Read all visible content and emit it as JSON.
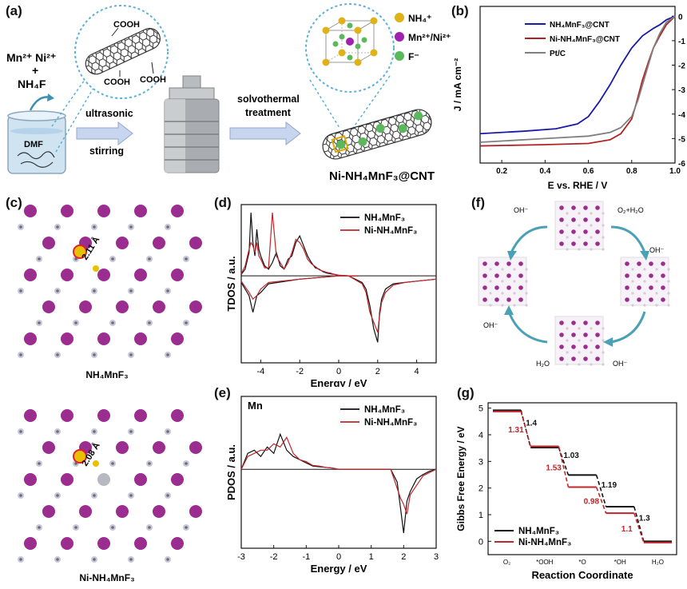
{
  "panels": {
    "a": {
      "label": "(a)",
      "precursor_line1": "Mn²⁺ Ni²⁺",
      "precursor_plus": "+",
      "precursor_line2": "NH₄F",
      "solvent": "DMF",
      "cooh": [
        "COOH",
        "COOH",
        "COOH"
      ],
      "step1_top": "ultrasonic",
      "step1_bottom": "stirring",
      "step2_top": "solvothermal",
      "step2_bottom": "treatment",
      "legend": [
        "NH₄⁺",
        "Mn²⁺/Ni²⁺",
        "F⁻"
      ],
      "product": "Ni-NH₄MnF₃@CNT",
      "colors": {
        "nh4": "#e0b21a",
        "mn_ni": "#a020b0",
        "f": "#5cb85c"
      }
    },
    "b": {
      "label": "(b)"
    },
    "c": {
      "label": "(c)",
      "bond_top": "2.11 Å",
      "bond_bottom": "2.08 Å",
      "name_top": "NH₄MnF₃",
      "name_bottom": "Ni-NH₄MnF₃"
    },
    "d": {
      "label": "(d)"
    },
    "e": {
      "label": "(e)",
      "element": "Mn"
    },
    "f": {
      "label": "(f)",
      "species": [
        "OH⁻",
        "O₂+H₂O",
        "OH⁻",
        "OH⁻",
        "H₂O",
        "OH⁻"
      ]
    },
    "g": {
      "label": "(g)"
    }
  },
  "chart_data": [
    {
      "id": "b",
      "type": "line",
      "xlabel": "E vs. RHE / V",
      "ylabel": "J / mA cm⁻²",
      "xlim": [
        0.1,
        1.0
      ],
      "ylim": [
        -6,
        0.4
      ],
      "xticks": [
        0.2,
        0.4,
        0.6,
        0.8,
        1.0
      ],
      "yticks": [
        0,
        -1,
        -2,
        -3,
        -4,
        -5,
        -6
      ],
      "legend_position": "top-right",
      "series": [
        {
          "name": "NH₄MnF₃@CNT",
          "color": "#1a1aa6",
          "x": [
            0.1,
            0.3,
            0.45,
            0.55,
            0.6,
            0.65,
            0.7,
            0.75,
            0.8,
            0.85,
            0.9,
            0.93,
            0.96,
            1.0
          ],
          "y": [
            -4.8,
            -4.7,
            -4.6,
            -4.4,
            -4.1,
            -3.5,
            -2.8,
            -2.0,
            -1.3,
            -0.8,
            -0.5,
            -0.35,
            -0.15,
            0.0
          ]
        },
        {
          "name": "Ni-NH₄MnF₃@CNT",
          "color": "#b22222",
          "x": [
            0.1,
            0.4,
            0.6,
            0.7,
            0.75,
            0.8,
            0.82,
            0.85,
            0.88,
            0.9,
            0.93,
            0.96,
            1.0
          ],
          "y": [
            -5.3,
            -5.25,
            -5.2,
            -5.05,
            -4.8,
            -4.2,
            -3.6,
            -2.6,
            -1.8,
            -1.3,
            -0.8,
            -0.35,
            0.0
          ]
        },
        {
          "name": "Pt/C",
          "color": "#808080",
          "x": [
            0.1,
            0.4,
            0.6,
            0.7,
            0.75,
            0.8,
            0.83,
            0.85,
            0.88,
            0.9,
            0.93,
            0.96,
            1.0
          ],
          "y": [
            -5.15,
            -5.0,
            -4.9,
            -4.75,
            -4.55,
            -4.1,
            -3.4,
            -2.8,
            -1.9,
            -1.3,
            -0.7,
            -0.25,
            0.0
          ]
        }
      ]
    },
    {
      "id": "d",
      "type": "line",
      "xlabel": "Energy / eV",
      "ylabel": "TDOS / a.u.",
      "xlim": [
        -5,
        5
      ],
      "ylim": [
        -1,
        1
      ],
      "xticks": [
        -4,
        -2,
        0,
        2,
        4
      ],
      "legend_position": "top-right",
      "series": [
        {
          "name": "NH₄MnF₃",
          "color": "#111111",
          "x": [
            -5,
            -4.8,
            -4.6,
            -4.5,
            -4.4,
            -4.3,
            -4.2,
            -4.1,
            -4.0,
            -3.8,
            -3.6,
            -3.4,
            -3.2,
            -3.0,
            -2.8,
            -2.6,
            -2.4,
            -2.2,
            -2.0,
            -1.8,
            -1.6,
            -1.4,
            -1.2,
            -1.0,
            -0.8,
            -0.6,
            -0.4,
            -0.2,
            0.0,
            0.5,
            1.0
          ],
          "y": [
            0.02,
            0.1,
            0.35,
            0.95,
            0.5,
            0.3,
            0.7,
            0.4,
            0.3,
            0.15,
            0.1,
            0.2,
            0.35,
            0.15,
            0.1,
            0.25,
            0.3,
            0.5,
            0.6,
            0.45,
            0.3,
            0.2,
            0.12,
            0.1,
            0.06,
            0.04,
            0.03,
            0.02,
            0.01,
            0.0,
            0.0
          ]
        },
        {
          "name": "Ni-NH₄MnF₃",
          "color": "#c0262b",
          "x": [
            -5,
            -4.8,
            -4.6,
            -4.5,
            -4.4,
            -4.3,
            -4.2,
            -4.1,
            -4.0,
            -3.8,
            -3.6,
            -3.4,
            -3.2,
            -3.0,
            -2.8,
            -2.6,
            -2.4,
            -2.2,
            -2.0,
            -1.8,
            -1.6,
            -1.4,
            -1.2,
            -1.0,
            -0.8,
            -0.6,
            -0.4,
            -0.2,
            0.0,
            0.5,
            1.0
          ],
          "y": [
            0.03,
            0.15,
            0.4,
            0.5,
            0.45,
            0.35,
            0.5,
            0.3,
            0.25,
            0.12,
            0.12,
            0.95,
            0.3,
            0.2,
            0.1,
            0.2,
            0.35,
            0.55,
            0.5,
            0.4,
            0.25,
            0.18,
            0.14,
            0.09,
            0.07,
            0.05,
            0.04,
            0.02,
            0.01,
            0.0,
            0.0
          ]
        }
      ]
    },
    {
      "id": "e",
      "type": "line",
      "xlabel": "Energy / eV",
      "ylabel": "PDOS / a.u.",
      "xlim": [
        -3,
        3
      ],
      "ylim": [
        -1,
        1
      ],
      "xticks": [
        -3,
        -2,
        -1,
        0,
        1,
        2,
        3
      ],
      "legend_position": "top-right",
      "series": [
        {
          "name": "NH₄MnF₃",
          "color": "#111111",
          "x": [
            -3,
            -2.8,
            -2.6,
            -2.4,
            -2.2,
            -2.0,
            -1.8,
            -1.6,
            -1.4,
            -1.2,
            -1.0,
            -0.8,
            -0.6,
            -0.4,
            -0.2,
            0.0,
            1.6,
            1.8,
            1.9,
            2.0,
            2.1,
            2.2,
            2.4,
            2.6,
            2.8,
            3.0
          ],
          "y": [
            0.0,
            0.25,
            0.3,
            0.2,
            0.35,
            0.25,
            0.55,
            0.3,
            0.2,
            0.15,
            0.1,
            0.05,
            0.04,
            0.03,
            0.02,
            0.0,
            0.0,
            -0.2,
            -0.6,
            -1.0,
            -0.5,
            -0.35,
            -0.15,
            -0.08,
            -0.03,
            0.0
          ]
        },
        {
          "name": "Ni-NH₄MnF₃",
          "color": "#c0262b",
          "x": [
            -3,
            -2.8,
            -2.6,
            -2.4,
            -2.2,
            -2.0,
            -1.8,
            -1.6,
            -1.4,
            -1.2,
            -1.0,
            -0.8,
            -0.6,
            -0.4,
            -0.2,
            0.0,
            1.6,
            1.8,
            1.9,
            2.0,
            2.1,
            2.2,
            2.4,
            2.6,
            2.8,
            3.0
          ],
          "y": [
            0.0,
            0.2,
            0.25,
            0.3,
            0.3,
            0.4,
            0.35,
            0.5,
            0.25,
            0.15,
            0.12,
            0.06,
            0.05,
            0.03,
            0.02,
            0.0,
            0.0,
            -0.3,
            -0.45,
            -0.55,
            -0.7,
            -0.4,
            -0.25,
            -0.1,
            -0.05,
            0.0
          ]
        }
      ]
    },
    {
      "id": "g",
      "type": "line",
      "xlabel": "Reaction Coordinate",
      "ylabel": "Gibbs Free Energy / eV",
      "ylim": [
        -0.5,
        5.2
      ],
      "yticks": [
        0,
        1,
        2,
        3,
        4,
        5
      ],
      "categories": [
        "O₂",
        "*OOH",
        "*O",
        "*OH",
        "H₂O"
      ],
      "legend_position": "bottom-left",
      "series": [
        {
          "name": "NH₄MnF₃",
          "color": "#111111",
          "values": [
            4.92,
            3.52,
            2.49,
            1.3,
            0.0
          ],
          "steps": [
            "1.4",
            "1.03",
            "1.19",
            "1.3"
          ]
        },
        {
          "name": "Ni-NH₄MnF₃",
          "color": "#c0262b",
          "values": [
            4.92,
            3.61,
            2.08,
            1.1,
            0.0
          ],
          "steps": [
            "1.31",
            "1.53",
            "0.98",
            "1.1"
          ]
        }
      ]
    }
  ]
}
